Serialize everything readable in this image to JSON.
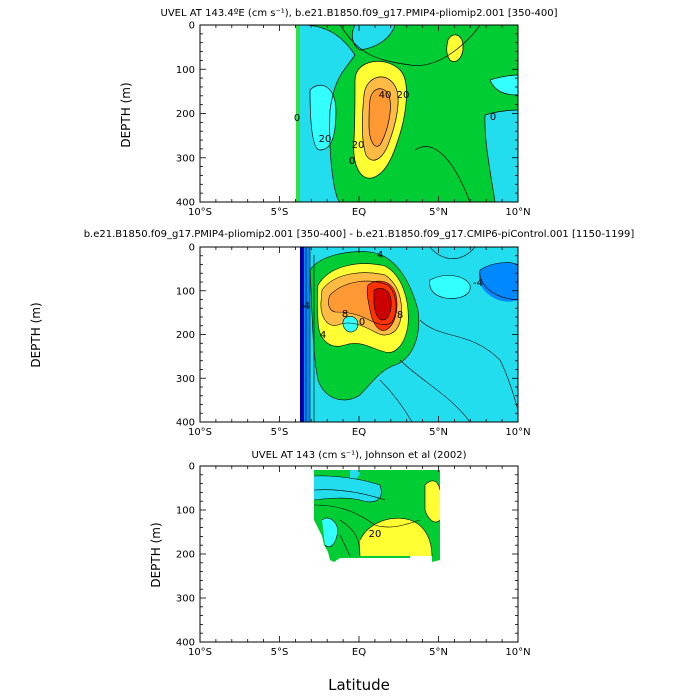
{
  "colors": {
    "green": "#00cc33",
    "lightgreen": "#33dd44",
    "cyan": "#33ffff",
    "aqua": "#22ddee",
    "blue": "#0088ff",
    "darkblue": "#0000aa",
    "yellow": "#ffff33",
    "orange": "#ff9933",
    "lightorange": "#ffbb44",
    "red": "#ff3300",
    "darkred": "#cc0000",
    "frame": "#000000"
  },
  "shared": {
    "x_ticks": [
      "10°S",
      "5°S",
      "EQ",
      "5°N",
      "10°N"
    ],
    "y_ticks": [
      "0",
      "100",
      "200",
      "300",
      "400"
    ],
    "ylabel": "DEPTH (m)",
    "xlabel": "Latitude"
  },
  "chart_data": [
    {
      "type": "heatmap",
      "title": "UVEL AT 143.4ºE (cm s⁻¹), b.e21.B1850.f09_g17.PMIP4-pliomip2.001 [350-400]",
      "xlabel": "",
      "ylabel": "DEPTH (m)",
      "xlim": [
        -10,
        10
      ],
      "ylim": [
        400,
        0
      ],
      "x_ticks": [
        "10°S",
        "5°S",
        "EQ",
        "5°N",
        "10°N"
      ],
      "y_ticks": [
        0,
        100,
        200,
        300,
        400
      ],
      "contour_labels": [
        "0",
        "20",
        "40",
        "20",
        "0",
        "20",
        "0"
      ],
      "data_extent_lat": [
        -3.9,
        10
      ],
      "regions": [
        {
          "name": "background",
          "color": "green"
        },
        {
          "name": "westward-band",
          "color": "aqua",
          "lat": [
            -3,
            -1
          ],
          "depth": [
            0,
            320
          ]
        },
        {
          "name": "surface-west",
          "color": "aqua",
          "lat": [
            -2.5,
            1.5
          ],
          "depth": [
            0,
            90
          ]
        },
        {
          "name": "euc-core",
          "color": "orange",
          "lat": [
            0,
            2.5
          ],
          "depth": [
            80,
            280
          ],
          "max": 40
        },
        {
          "name": "euc-yellow",
          "color": "yellow",
          "lat": [
            -0.5,
            3
          ],
          "depth": [
            60,
            320
          ]
        },
        {
          "name": "ne-jet",
          "color": "yellow",
          "lat": [
            5,
            6.5
          ],
          "depth": [
            20,
            100
          ]
        },
        {
          "name": "south-current",
          "color": "cyan",
          "lat": [
            -3.5,
            -2.5
          ],
          "depth": [
            130,
            260
          ]
        },
        {
          "name": "east-band",
          "color": "aqua",
          "lat": [
            8,
            10
          ],
          "depth": [
            120,
            400
          ]
        }
      ]
    },
    {
      "type": "heatmap",
      "title": "b.e21.B1850.f09_g17.PMIP4-pliomip2.001 [350-400] - b.e21.B1850.f09_g17.CMIP6-piControl.001 [1150-1199]",
      "xlabel": "",
      "ylabel": "DEPTH (m)",
      "xlim": [
        -10,
        10
      ],
      "ylim": [
        400,
        0
      ],
      "x_ticks": [
        "10°S",
        "5°S",
        "EQ",
        "5°N",
        "10°N"
      ],
      "y_ticks": [
        0,
        100,
        200,
        300,
        400
      ],
      "contour_labels": [
        "4",
        "8",
        "-4",
        "0",
        "8",
        "4",
        "-4"
      ],
      "data_extent_lat": [
        -3.9,
        10
      ],
      "regions": [
        {
          "name": "background",
          "color": "aqua"
        },
        {
          "name": "positive-anomaly",
          "color": "green",
          "lat": [
            -3,
            3
          ],
          "depth": [
            0,
            340
          ]
        },
        {
          "name": "orange-core",
          "color": "orange",
          "lat": [
            -2.5,
            3
          ],
          "depth": [
            30,
            200
          ]
        },
        {
          "name": "red-core",
          "color": "darkred",
          "lat": [
            1,
            2.5
          ],
          "depth": [
            60,
            170
          ]
        },
        {
          "name": "west-boundary-negative",
          "color": "darkblue",
          "lat": [
            -3.5,
            -3
          ],
          "depth": [
            0,
            400
          ]
        },
        {
          "name": "east-negative",
          "color": "blue",
          "lat": [
            8.5,
            10
          ],
          "depth": [
            40,
            100
          ]
        }
      ]
    },
    {
      "type": "heatmap",
      "title": "UVEL AT 143 (cm s⁻¹), Johnson et al (2002)",
      "xlabel": "Latitude",
      "ylabel": "DEPTH (m)",
      "xlim": [
        -10,
        10
      ],
      "ylim": [
        400,
        0
      ],
      "x_ticks": [
        "10°S",
        "5°S",
        "EQ",
        "5°N",
        "10°N"
      ],
      "y_ticks": [
        0,
        100,
        200,
        300,
        400
      ],
      "contour_labels": [
        "20"
      ],
      "data_extent_lat": [
        -2.8,
        5
      ],
      "data_extent_depth": [
        10,
        220
      ],
      "regions": [
        {
          "name": "background",
          "color": "green"
        },
        {
          "name": "surface-westward",
          "color": "aqua",
          "lat": [
            -2,
            2
          ],
          "depth": [
            10,
            70
          ]
        },
        {
          "name": "euc-yellow",
          "color": "yellow",
          "lat": [
            0,
            4
          ],
          "depth": [
            80,
            200
          ]
        },
        {
          "name": "east-yellow",
          "color": "yellow",
          "lat": [
            4,
            5
          ],
          "depth": [
            20,
            120
          ]
        }
      ]
    }
  ]
}
